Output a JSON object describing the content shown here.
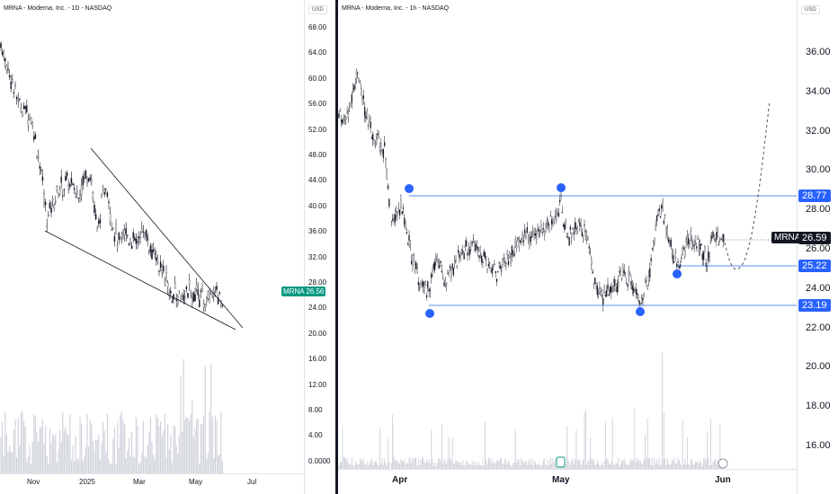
{
  "left_chart": {
    "title": "MRNA - Moderna, Inc. - 1D - NASDAQ",
    "currency": "USD",
    "y_ticks": [
      "68.00",
      "64.00",
      "60.00",
      "56.00",
      "52.00",
      "48.00",
      "44.00",
      "40.00",
      "36.00",
      "32.00",
      "28.00",
      "24.00",
      "20.00",
      "16.00",
      "12.00",
      "8.00",
      "4.00",
      "0.0000"
    ],
    "x_ticks": [
      "Nov",
      "2025",
      "Mar",
      "May",
      "Jul"
    ],
    "price_tag": {
      "symbol": "MRNA",
      "value": "26.56"
    },
    "colors": {
      "tag_bg": "#089981",
      "candle": "#131722",
      "volume": "#d1d4dc",
      "trendline": "#131722"
    }
  },
  "right_chart": {
    "title": "MRNA - Moderna, Inc. - 1h - NASDAQ",
    "currency": "USD",
    "y_ticks": [
      "36.00",
      "34.00",
      "32.00",
      "30.00",
      "28.00",
      "26.00",
      "24.00",
      "22.00",
      "20.00",
      "18.00",
      "16.00"
    ],
    "x_ticks": [
      "Apr",
      "May",
      "Jun"
    ],
    "price_tag": {
      "symbol": "MRNA",
      "value": "26.59"
    },
    "levels": [
      {
        "value": "28.77"
      },
      {
        "value": "25.22"
      },
      {
        "value": "23.19"
      }
    ],
    "colors": {
      "level": "#2962ff",
      "level_line": "#5b8def",
      "marker": "#2962ff",
      "tag_bg": "#131722",
      "candle": "#131722",
      "projection": "#555555"
    }
  }
}
